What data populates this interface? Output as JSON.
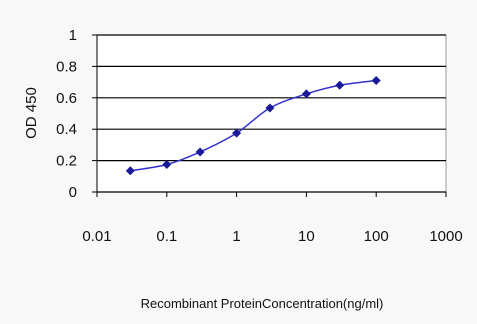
{
  "chart_data": {
    "type": "line",
    "title": "",
    "xlabel": "Recombinant ProteinConcentration(ng/ml)",
    "ylabel": "OD 450",
    "xscale": "log",
    "xlim": [
      0.01,
      1000
    ],
    "ylim": [
      0,
      1
    ],
    "xticks": [
      "0.01",
      "0.1",
      "1",
      "10",
      "100",
      "1000"
    ],
    "yticks": [
      "0",
      "0.2",
      "0.4",
      "0.6",
      "0.8",
      "1"
    ],
    "grid": "horizontal",
    "legend": "none",
    "series": [
      {
        "x": [
          0.03,
          0.1,
          0.3,
          1,
          3,
          10,
          30,
          100
        ],
        "y": [
          0.135,
          0.175,
          0.255,
          0.375,
          0.535,
          0.625,
          0.68,
          0.71
        ]
      }
    ],
    "colors": {
      "line": "#3333cc",
      "marker": "#1a1a99",
      "plot_bg": "#ffffff",
      "gridline": "#000000",
      "page_bg": "#f8f8f8"
    }
  }
}
